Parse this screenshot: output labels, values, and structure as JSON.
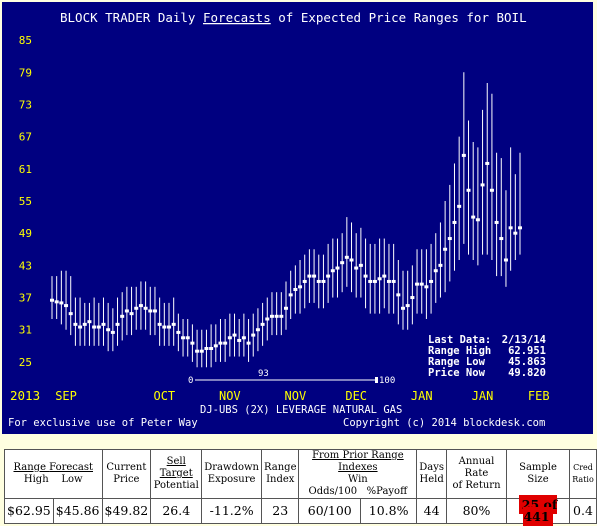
{
  "chart": {
    "title_pre": "BLOCK TRADER Daily ",
    "title_link": "Forecasts",
    "title_post": " of Expected Price Ranges for  BOIL",
    "y_ticks": [
      25,
      31,
      37,
      43,
      49,
      55,
      61,
      67,
      73,
      79,
      85
    ],
    "x_labels": [
      {
        "label": "SEP",
        "idx": 3
      },
      {
        "label": "OCT",
        "idx": 24
      },
      {
        "label": "NOV",
        "idx": 38
      },
      {
        "label": "NOV",
        "idx": 52
      },
      {
        "label": "DEC",
        "idx": 65
      },
      {
        "label": "JAN",
        "idx": 79
      },
      {
        "label": "JAN",
        "idx": 92
      },
      {
        "label": "FEB",
        "idx": 104
      }
    ],
    "year_label": "2013",
    "range_index_start": "0",
    "range_index_mid": "93",
    "range_index_end": "100",
    "subtitle": "DJ-UBS (2X) LEVERAGE NATURAL GAS",
    "exclusive": "For exclusive use of Peter Way",
    "copyright": "Copyright (c) 2014 blockdesk.com",
    "info": [
      {
        "label": "Last Data:",
        "value": "2/13/14"
      },
      {
        "label": "Range High",
        "value": "62.951"
      },
      {
        "label": "Range Low",
        "value": "45.863"
      },
      {
        "label": "Price Now",
        "value": "49.820"
      }
    ],
    "colors": {
      "background": "#000080",
      "axis_text": "#ffff00",
      "bars": "#ffffff",
      "title": "#ffffff"
    }
  },
  "chart_data": {
    "type": "range-bar",
    "title": "BLOCK TRADER Daily Forecasts of Expected Price Ranges for  BOIL",
    "xlabel": "",
    "ylabel": "",
    "ylim": [
      22,
      88
    ],
    "series": [
      {
        "name": "forecast_range",
        "points": [
          {
            "low": 33,
            "high": 41,
            "price": 36.5
          },
          {
            "low": 33,
            "high": 41,
            "price": 36.2
          },
          {
            "low": 32,
            "high": 42,
            "price": 36
          },
          {
            "low": 31,
            "high": 42,
            "price": 35.5
          },
          {
            "low": 30,
            "high": 41,
            "price": 34
          },
          {
            "low": 28,
            "high": 37,
            "price": 32
          },
          {
            "low": 28,
            "high": 37,
            "price": 31.5
          },
          {
            "low": 28,
            "high": 36,
            "price": 32
          },
          {
            "low": 28,
            "high": 36,
            "price": 32.5
          },
          {
            "low": 28,
            "high": 37,
            "price": 31.5
          },
          {
            "low": 28,
            "high": 36,
            "price": 31.5
          },
          {
            "low": 28,
            "high": 37,
            "price": 32
          },
          {
            "low": 27,
            "high": 36,
            "price": 31
          },
          {
            "low": 27,
            "high": 35,
            "price": 30.5
          },
          {
            "low": 28,
            "high": 37,
            "price": 32
          },
          {
            "low": 29,
            "high": 38,
            "price": 33.5
          },
          {
            "low": 30,
            "high": 39,
            "price": 34.5
          },
          {
            "low": 30,
            "high": 39,
            "price": 34
          },
          {
            "low": 31,
            "high": 39,
            "price": 35
          },
          {
            "low": 31,
            "high": 40,
            "price": 35.5
          },
          {
            "low": 31,
            "high": 40,
            "price": 35
          },
          {
            "low": 30,
            "high": 39,
            "price": 34.5
          },
          {
            "low": 30,
            "high": 39,
            "price": 34.5
          },
          {
            "low": 28,
            "high": 37,
            "price": 32
          },
          {
            "low": 28,
            "high": 36,
            "price": 31.5
          },
          {
            "low": 28,
            "high": 36,
            "price": 31.5
          },
          {
            "low": 28,
            "high": 37,
            "price": 32
          },
          {
            "low": 27,
            "high": 34,
            "price": 30.5
          },
          {
            "low": 26,
            "high": 33,
            "price": 29.5
          },
          {
            "low": 26,
            "high": 33,
            "price": 29.5
          },
          {
            "low": 25,
            "high": 32,
            "price": 28.5
          },
          {
            "low": 24,
            "high": 31,
            "price": 27
          },
          {
            "low": 24,
            "high": 31,
            "price": 27
          },
          {
            "low": 24,
            "high": 31,
            "price": 27.5
          },
          {
            "low": 24,
            "high": 32,
            "price": 27.5
          },
          {
            "low": 25,
            "high": 32,
            "price": 28
          },
          {
            "low": 25,
            "high": 33,
            "price": 28.5
          },
          {
            "low": 25,
            "high": 33,
            "price": 28.5
          },
          {
            "low": 26,
            "high": 34,
            "price": 29.5
          },
          {
            "low": 26,
            "high": 34,
            "price": 30
          },
          {
            "low": 26,
            "high": 33,
            "price": 29
          },
          {
            "low": 26,
            "high": 34,
            "price": 29.5
          },
          {
            "low": 25,
            "high": 33,
            "price": 28.5
          },
          {
            "low": 26,
            "high": 34,
            "price": 30
          },
          {
            "low": 27,
            "high": 35,
            "price": 31
          },
          {
            "low": 28,
            "high": 36,
            "price": 32
          },
          {
            "low": 29,
            "high": 37,
            "price": 33
          },
          {
            "low": 30,
            "high": 38,
            "price": 33.5
          },
          {
            "low": 30,
            "high": 38,
            "price": 33.5
          },
          {
            "low": 30,
            "high": 38,
            "price": 33.5
          },
          {
            "low": 31,
            "high": 40,
            "price": 35
          },
          {
            "low": 33,
            "high": 42,
            "price": 37.5
          },
          {
            "low": 34,
            "high": 43,
            "price": 38.5
          },
          {
            "low": 34,
            "high": 44,
            "price": 39
          },
          {
            "low": 35,
            "high": 45,
            "price": 40
          },
          {
            "low": 36,
            "high": 46,
            "price": 41
          },
          {
            "low": 36,
            "high": 46,
            "price": 41
          },
          {
            "low": 35,
            "high": 45,
            "price": 40
          },
          {
            "low": 35,
            "high": 45,
            "price": 40
          },
          {
            "low": 36,
            "high": 47,
            "price": 41
          },
          {
            "low": 37,
            "high": 48,
            "price": 42
          },
          {
            "low": 37,
            "high": 48,
            "price": 42.5
          },
          {
            "low": 38,
            "high": 49,
            "price": 43.5
          },
          {
            "low": 39,
            "high": 52,
            "price": 44.5
          },
          {
            "low": 38,
            "high": 51,
            "price": 44
          },
          {
            "low": 37,
            "high": 49,
            "price": 42.5
          },
          {
            "low": 37,
            "high": 50,
            "price": 43
          },
          {
            "low": 35,
            "high": 48,
            "price": 41
          },
          {
            "low": 34,
            "high": 47,
            "price": 40
          },
          {
            "low": 34,
            "high": 47,
            "price": 40
          },
          {
            "low": 34,
            "high": 48,
            "price": 40.5
          },
          {
            "low": 35,
            "high": 48,
            "price": 41
          },
          {
            "low": 34,
            "high": 47,
            "price": 40
          },
          {
            "low": 34,
            "high": 47,
            "price": 40
          },
          {
            "low": 32,
            "high": 44,
            "price": 37.5
          },
          {
            "low": 31,
            "high": 42,
            "price": 35
          },
          {
            "low": 31,
            "high": 42,
            "price": 35.5
          },
          {
            "low": 32,
            "high": 43,
            "price": 37
          },
          {
            "low": 34,
            "high": 46,
            "price": 39.5
          },
          {
            "low": 34,
            "high": 46,
            "price": 39.5
          },
          {
            "low": 33,
            "high": 46,
            "price": 39
          },
          {
            "low": 34,
            "high": 47,
            "price": 40
          },
          {
            "low": 36,
            "high": 49,
            "price": 42
          },
          {
            "low": 37,
            "high": 51,
            "price": 43
          },
          {
            "low": 38,
            "high": 55,
            "price": 46
          },
          {
            "low": 40,
            "high": 58,
            "price": 48
          },
          {
            "low": 42,
            "high": 62,
            "price": 51
          },
          {
            "low": 44,
            "high": 67,
            "price": 54
          },
          {
            "low": 47,
            "high": 79,
            "price": 63.5
          },
          {
            "low": 45,
            "high": 70,
            "price": 57
          },
          {
            "low": 44,
            "high": 66,
            "price": 52
          },
          {
            "low": 43,
            "high": 65,
            "price": 51.5
          },
          {
            "low": 45,
            "high": 72,
            "price": 58
          },
          {
            "low": 45,
            "high": 77,
            "price": 62
          },
          {
            "low": 44,
            "high": 75,
            "price": 57
          },
          {
            "low": 41,
            "high": 64,
            "price": 51
          },
          {
            "low": 41,
            "high": 63,
            "price": 48
          },
          {
            "low": 39,
            "high": 57,
            "price": 44
          },
          {
            "low": 42,
            "high": 65,
            "price": 50
          },
          {
            "low": 44,
            "high": 60,
            "price": 49
          },
          {
            "low": 45,
            "high": 64,
            "price": 50
          }
        ]
      }
    ]
  },
  "table": {
    "h1": {
      "range_forecast_pre": "Range ",
      "range_forecast_link": "Forecast",
      "current_price": "Current",
      "sell_target": "Sell Target",
      "drawdown": "Drawdown",
      "range_index": "Range",
      "prior_range": "From Prior Range Indexes",
      "days": "Days",
      "annual_rate": "Annual Rate",
      "sample_size": "Sample Size",
      "cred": "Cred"
    },
    "h2": {
      "high": "High",
      "low": "Low",
      "price": "Price",
      "potential": "Potential",
      "exposure": "Exposure",
      "index": "Index",
      "win_odds": "Win Odds/100",
      "payoff": "%Payoff",
      "held": "Held",
      "of_return": "of Return",
      "ratio": "Ratio"
    },
    "values": {
      "high": "$62.95",
      "low": "$45.86",
      "current": "$49.82",
      "sell_target": "26.4",
      "drawdown": "-11.2%",
      "range_index": "23",
      "win_odds": "60/100",
      "payoff": "10.8%",
      "days_held": "44",
      "annual_rate": "80%",
      "sample_size": "25 of 441",
      "cred_ratio": "0.4"
    }
  }
}
